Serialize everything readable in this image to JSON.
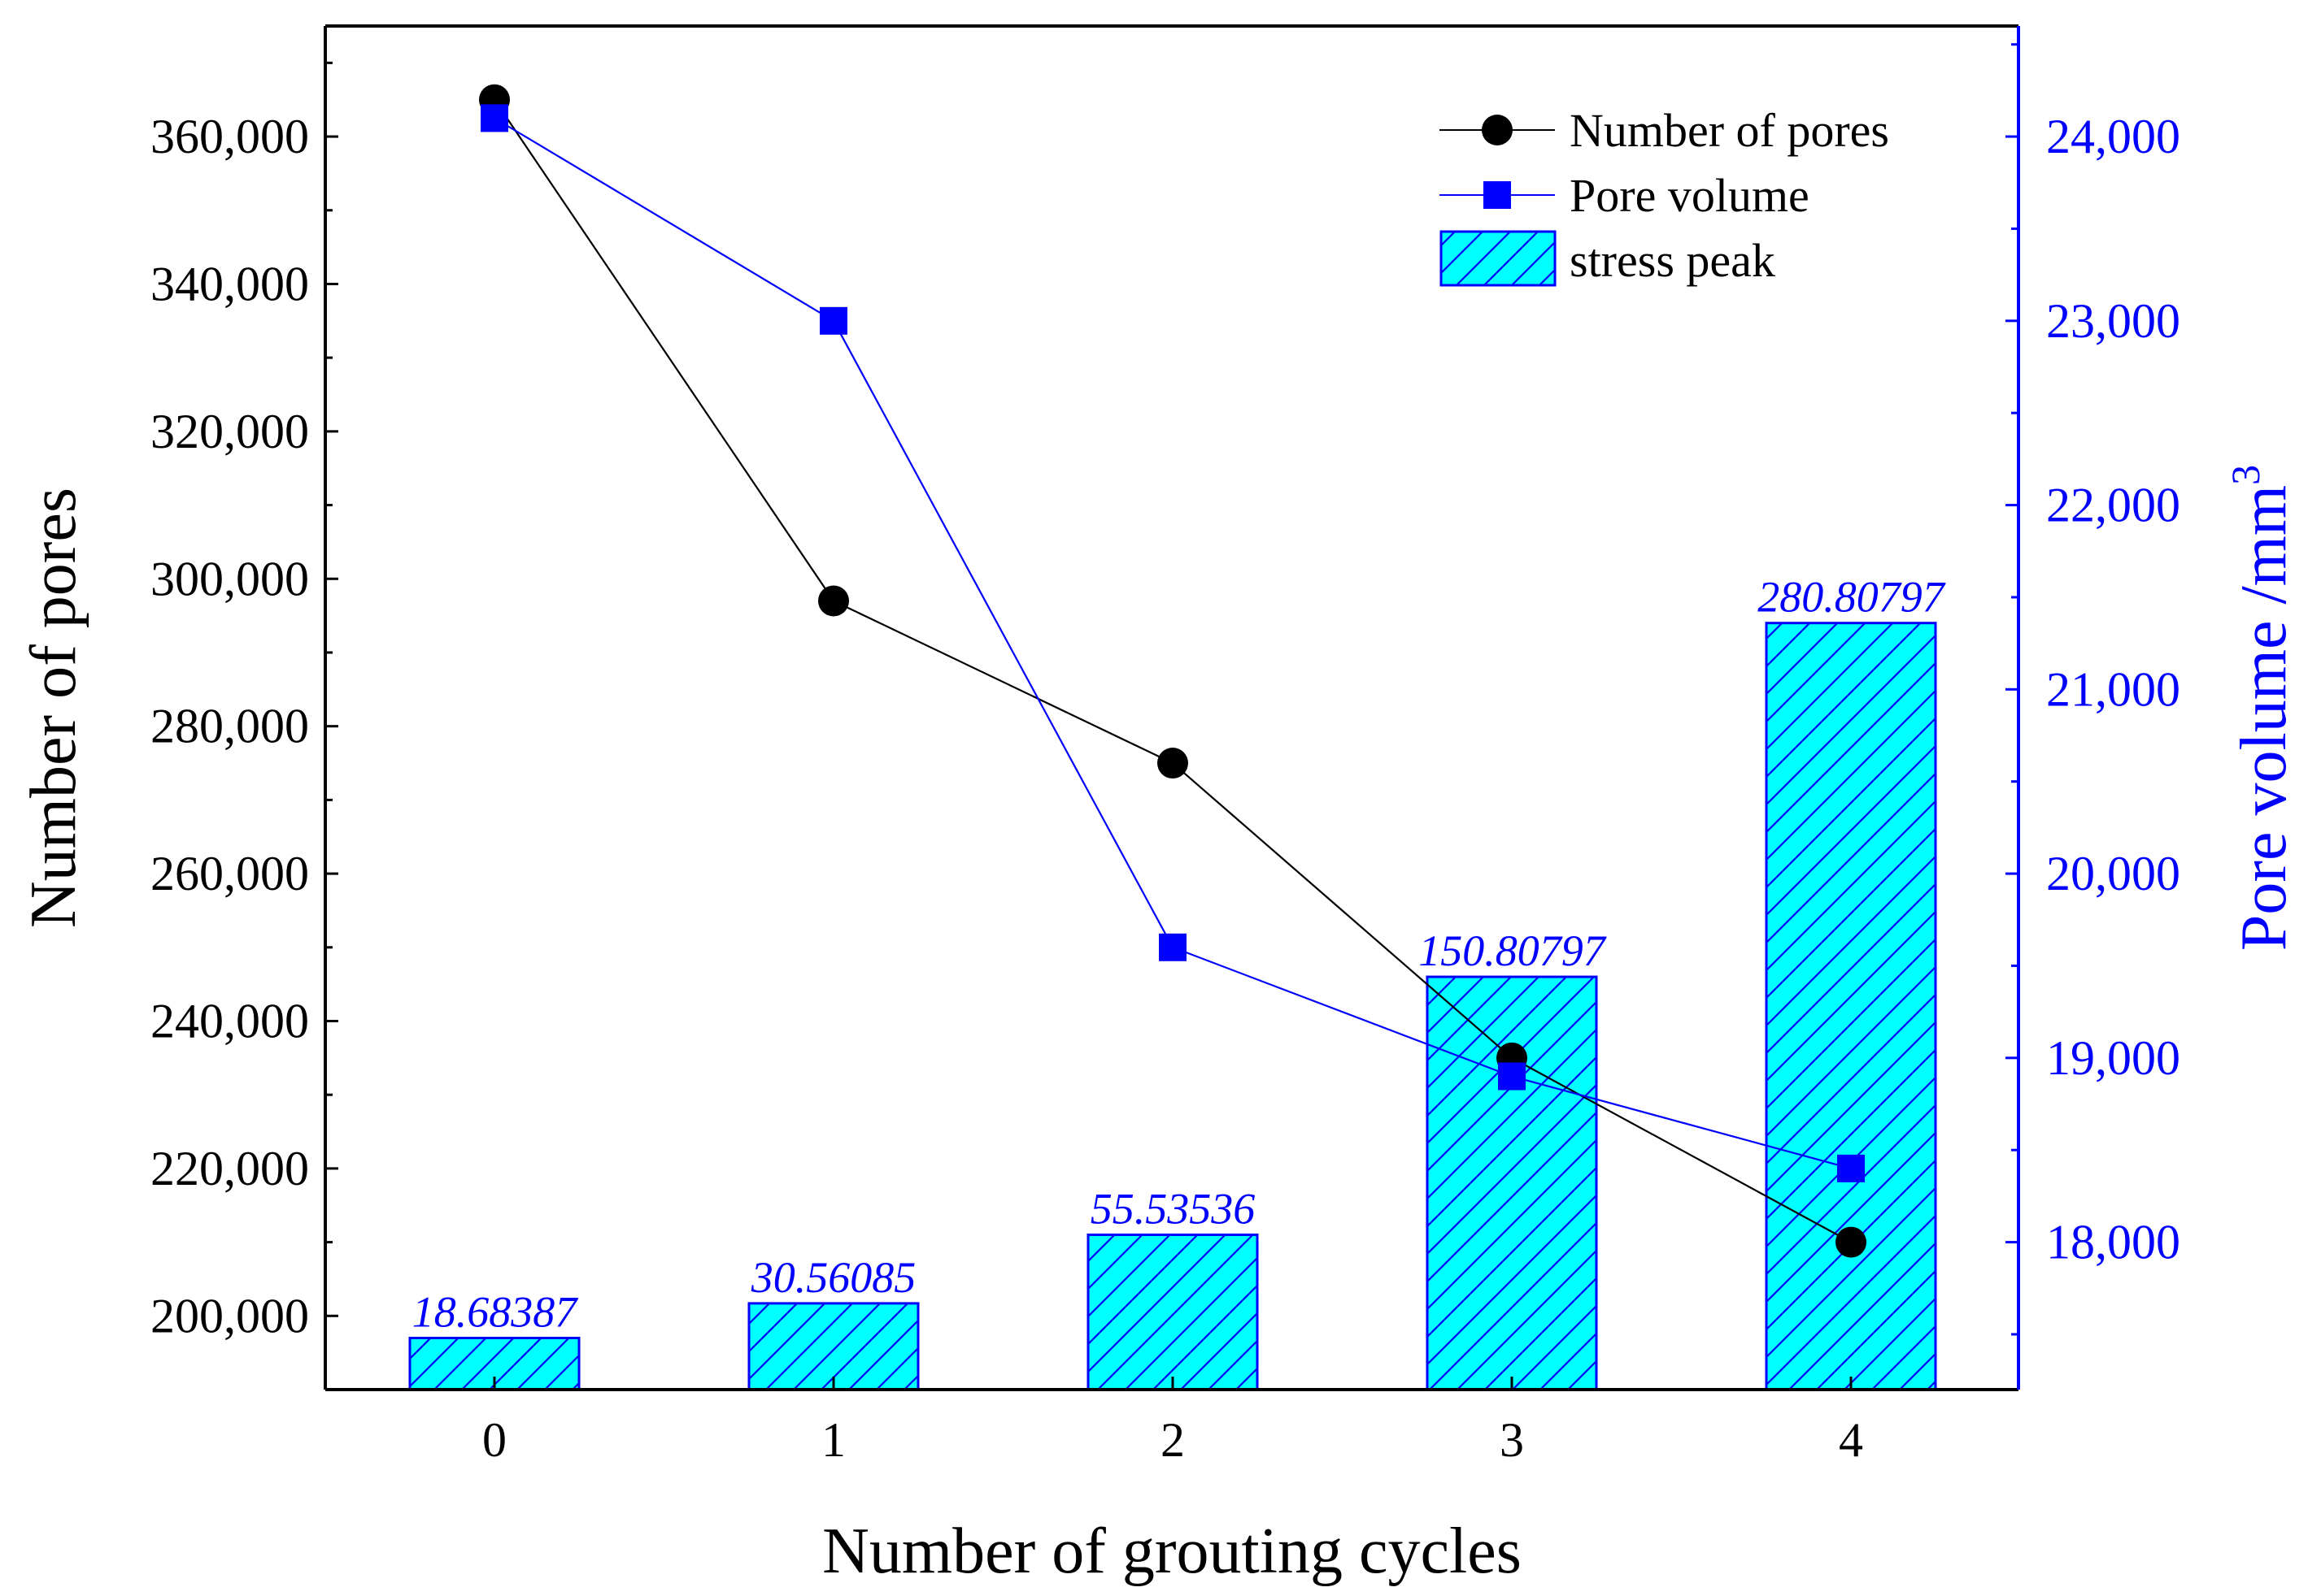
{
  "chart_data": {
    "type": "bar+line",
    "categories": [
      "0",
      "1",
      "2",
      "3",
      "4"
    ],
    "x_title": "Number of grouting cycles",
    "y_left": {
      "title": "Number of pores",
      "lim": [
        190000,
        375000
      ],
      "ticks": [
        200000,
        220000,
        240000,
        260000,
        280000,
        300000,
        320000,
        340000,
        360000
      ],
      "tick_labels": [
        "200,000",
        "220,000",
        "240,000",
        "260,000",
        "280,000",
        "300,000",
        "320,000",
        "340,000",
        "360,000"
      ]
    },
    "y_right": {
      "title": "Pore volume /mm",
      "title_sup": "3",
      "lim": [
        17200,
        24600
      ],
      "ticks": [
        18000,
        19000,
        20000,
        21000,
        22000,
        23000,
        24000
      ],
      "tick_labels": [
        "18,000",
        "19,000",
        "20,000",
        "21,000",
        "22,000",
        "23,000",
        "24,000"
      ]
    },
    "series": [
      {
        "name": "Number of pores",
        "kind": "line",
        "axis": "left",
        "marker": "circle",
        "color": "#000000",
        "values": [
          365000,
          297000,
          275000,
          235000,
          210000
        ]
      },
      {
        "name": "Pore volume",
        "kind": "line",
        "axis": "right",
        "marker": "square",
        "color": "#0000ff",
        "values": [
          24100,
          23000,
          19600,
          18900,
          18400
        ]
      },
      {
        "name": "stress peak",
        "kind": "bar",
        "axis": "left",
        "fill": "#00ffff",
        "hatch": "#0000ff",
        "values": [
          18.68387,
          30.56085,
          55.53536,
          150.80797,
          280.80797
        ],
        "labels": [
          "18.68387",
          "30.56085",
          "55.53536",
          "150.80797",
          "280.80797"
        ],
        "bar_tops_left_axis": [
          197000,
          201700,
          211000,
          246000,
          294000
        ]
      }
    ],
    "legend_position": "top-right",
    "grid": false
  }
}
